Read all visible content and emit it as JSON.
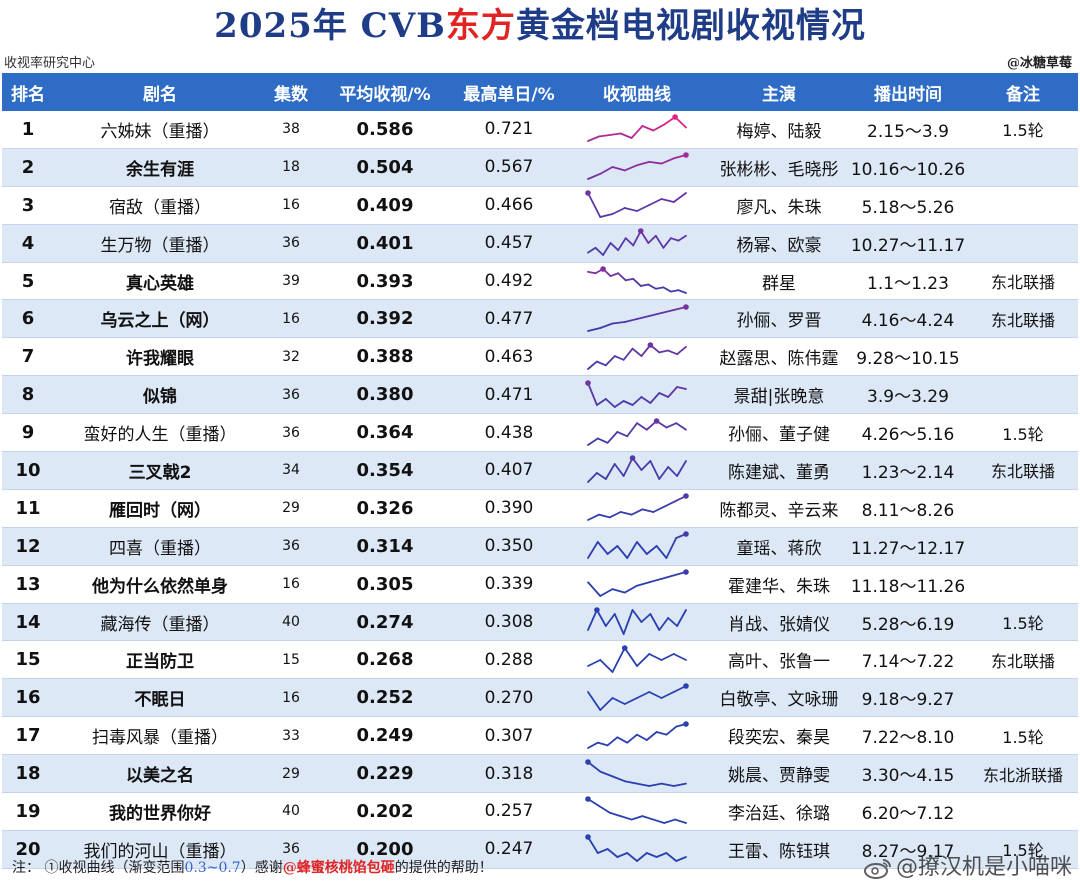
{
  "title": {
    "pre": "2025年 CVB",
    "highlight": "东方",
    "post": "黄金档电视剧收视情况"
  },
  "source_left": "收视率研究中心",
  "source_right": "@冰糖草莓",
  "columns": [
    "排名",
    "剧名",
    "集数",
    "平均收视/%",
    "最高单日/%",
    "收视曲线",
    "主演",
    "播出时间",
    "备注"
  ],
  "colors": {
    "header_bg": "#2e6cc6",
    "title": "#1f3d86",
    "accent_red": "#e02424",
    "stripe": "#dde8f6",
    "curve_high": "#e0208a",
    "curve_low": "#2a3fb0"
  },
  "rows": [
    {
      "rank": "1",
      "name": "六姊妹（重播）",
      "bold": false,
      "eps": "38",
      "avg": "0.586",
      "peak": "0.721",
      "cast": "梅婷、陆毅",
      "time": "2.15～3.9",
      "note": "1.5轮",
      "curve": [
        0.56,
        0.59,
        0.6,
        0.61,
        0.58,
        0.66,
        0.63,
        0.67,
        0.72,
        0.65
      ]
    },
    {
      "rank": "2",
      "name": "余生有涯",
      "bold": true,
      "eps": "18",
      "avg": "0.504",
      "peak": "0.567",
      "cast": "张彬彬、毛晓彤",
      "time": "10.16～10.26",
      "note": "",
      "curve": [
        0.43,
        0.46,
        0.5,
        0.48,
        0.51,
        0.53,
        0.52,
        0.55,
        0.57
      ]
    },
    {
      "rank": "3",
      "name": "宿敌（重播）",
      "bold": false,
      "eps": "16",
      "avg": "0.409",
      "peak": "0.466",
      "cast": "廖凡、朱珠",
      "time": "5.18～5.26",
      "note": "",
      "curve": [
        0.46,
        0.38,
        0.39,
        0.41,
        0.4,
        0.42,
        0.44,
        0.43,
        0.46
      ]
    },
    {
      "rank": "4",
      "name": "生万物（重播）",
      "bold": false,
      "eps": "36",
      "avg": "0.401",
      "peak": "0.457",
      "cast": "杨幂、欧豪",
      "time": "10.27～11.17",
      "note": "",
      "curve": [
        0.37,
        0.39,
        0.36,
        0.41,
        0.38,
        0.43,
        0.4,
        0.46,
        0.41,
        0.44,
        0.39,
        0.43,
        0.42,
        0.44
      ]
    },
    {
      "rank": "5",
      "name": "真心英雄",
      "bold": true,
      "eps": "39",
      "avg": "0.393",
      "peak": "0.492",
      "cast": "群星",
      "time": "1.1～1.23",
      "note": "东北联播",
      "curve": [
        0.47,
        0.46,
        0.49,
        0.44,
        0.46,
        0.41,
        0.42,
        0.37,
        0.38,
        0.35,
        0.36,
        0.33,
        0.34,
        0.32
      ]
    },
    {
      "rank": "6",
      "name": "乌云之上（网）",
      "bold": true,
      "eps": "16",
      "avg": "0.392",
      "peak": "0.477",
      "cast": "孙俪、罗晋",
      "time": "4.16～4.24",
      "note": "东北联播",
      "curve": [
        0.31,
        0.33,
        0.36,
        0.37,
        0.39,
        0.41,
        0.43,
        0.45,
        0.47
      ]
    },
    {
      "rank": "7",
      "name": "许我耀眼",
      "bold": true,
      "eps": "32",
      "avg": "0.388",
      "peak": "0.463",
      "cast": "赵露思、陈伟霆",
      "time": "9.28～10.15",
      "note": "",
      "curve": [
        0.33,
        0.37,
        0.35,
        0.4,
        0.38,
        0.44,
        0.4,
        0.46,
        0.42,
        0.43,
        0.41,
        0.45
      ]
    },
    {
      "rank": "8",
      "name": "似锦",
      "bold": true,
      "eps": "36",
      "avg": "0.380",
      "peak": "0.471",
      "cast": "景甜|张晚意",
      "time": "3.9～3.29",
      "note": "",
      "curve": [
        0.46,
        0.35,
        0.38,
        0.34,
        0.37,
        0.35,
        0.39,
        0.36,
        0.41,
        0.39,
        0.44,
        0.43
      ]
    },
    {
      "rank": "9",
      "name": "蛮好的人生（重播）",
      "bold": false,
      "eps": "36",
      "avg": "0.364",
      "peak": "0.438",
      "cast": "孙俪、董子健",
      "time": "4.26～5.16",
      "note": "1.5轮",
      "curve": [
        0.32,
        0.35,
        0.33,
        0.38,
        0.36,
        0.42,
        0.39,
        0.43,
        0.4,
        0.42,
        0.39
      ]
    },
    {
      "rank": "10",
      "name": "三叉戟2",
      "bold": true,
      "eps": "34",
      "avg": "0.354",
      "peak": "0.407",
      "cast": "陈建斌、董勇",
      "time": "1.23～2.14",
      "note": "东北联播",
      "curve": [
        0.32,
        0.35,
        0.33,
        0.38,
        0.34,
        0.4,
        0.36,
        0.39,
        0.33,
        0.37,
        0.34,
        0.39
      ]
    },
    {
      "rank": "11",
      "name": "雁回时（网）",
      "bold": true,
      "eps": "29",
      "avg": "0.326",
      "peak": "0.390",
      "cast": "陈都灵、辛云来",
      "time": "8.11～8.26",
      "note": "",
      "curve": [
        0.3,
        0.32,
        0.31,
        0.33,
        0.32,
        0.34,
        0.33,
        0.35,
        0.37,
        0.39
      ]
    },
    {
      "rank": "12",
      "name": "四喜（重播）",
      "bold": false,
      "eps": "36",
      "avg": "0.314",
      "peak": "0.350",
      "cast": "童瑶、蒋欣",
      "time": "11.27～12.17",
      "note": "",
      "curve": [
        0.29,
        0.33,
        0.3,
        0.32,
        0.29,
        0.33,
        0.3,
        0.32,
        0.29,
        0.34,
        0.35
      ]
    },
    {
      "rank": "13",
      "name": "他为什么依然单身",
      "bold": true,
      "eps": "16",
      "avg": "0.305",
      "peak": "0.339",
      "cast": "霍建华、朱珠",
      "time": "11.18～11.26",
      "note": "",
      "curve": [
        0.31,
        0.27,
        0.29,
        0.28,
        0.3,
        0.31,
        0.32,
        0.33,
        0.34
      ]
    },
    {
      "rank": "14",
      "name": "藏海传（重播）",
      "bold": false,
      "eps": "40",
      "avg": "0.274",
      "peak": "0.308",
      "cast": "肖战、张婧仪",
      "time": "5.28～6.19",
      "note": "1.5轮",
      "curve": [
        0.25,
        0.3,
        0.26,
        0.29,
        0.24,
        0.3,
        0.27,
        0.29,
        0.25,
        0.28,
        0.26,
        0.3
      ]
    },
    {
      "rank": "15",
      "name": "正当防卫",
      "bold": true,
      "eps": "15",
      "avg": "0.268",
      "peak": "0.288",
      "cast": "高叶、张鲁一",
      "time": "7.14～7.22",
      "note": "东北联播",
      "curve": [
        0.26,
        0.27,
        0.25,
        0.29,
        0.26,
        0.28,
        0.27,
        0.28,
        0.27
      ]
    },
    {
      "rank": "16",
      "name": "不眠日",
      "bold": true,
      "eps": "16",
      "avg": "0.252",
      "peak": "0.270",
      "cast": "白敬亭、文咏珊",
      "time": "9.18～9.27",
      "note": "",
      "curve": [
        0.26,
        0.23,
        0.25,
        0.24,
        0.25,
        0.26,
        0.25,
        0.26,
        0.27
      ]
    },
    {
      "rank": "17",
      "name": "扫毒风暴（重播）",
      "bold": false,
      "eps": "33",
      "avg": "0.249",
      "peak": "0.307",
      "cast": "段奕宏、秦昊",
      "time": "7.22～8.10",
      "note": "1.5轮",
      "curve": [
        0.22,
        0.24,
        0.23,
        0.26,
        0.24,
        0.27,
        0.25,
        0.28,
        0.27,
        0.3,
        0.31
      ]
    },
    {
      "rank": "18",
      "name": "以美之名",
      "bold": true,
      "eps": "29",
      "avg": "0.229",
      "peak": "0.318",
      "cast": "姚晨、贾静雯",
      "time": "3.30～4.15",
      "note": "东北浙联播",
      "curve": [
        0.31,
        0.27,
        0.25,
        0.23,
        0.22,
        0.21,
        0.22,
        0.21,
        0.22
      ]
    },
    {
      "rank": "19",
      "name": "我的世界你好",
      "bold": true,
      "eps": "40",
      "avg": "0.202",
      "peak": "0.257",
      "cast": "李治廷、徐璐",
      "time": "6.20～7.12",
      "note": "",
      "curve": [
        0.25,
        0.23,
        0.21,
        0.2,
        0.19,
        0.2,
        0.19,
        0.18,
        0.19,
        0.18
      ]
    },
    {
      "rank": "20",
      "name": "我们的河山（重播）",
      "bold": false,
      "eps": "36",
      "avg": "0.200",
      "peak": "0.247",
      "cast": "王雷、陈钰琪",
      "time": "8.27～9.17",
      "note": "1.5轮",
      "curve": [
        0.24,
        0.2,
        0.21,
        0.19,
        0.2,
        0.18,
        0.2,
        0.19,
        0.2,
        0.18,
        0.19
      ]
    }
  ],
  "footer": {
    "pre": "注：  ①收视曲线（渐变范围",
    "range": "0.3~0.7",
    "mid": "）感谢",
    "thanks": "@蜂蜜核桃馅包砸",
    "post": "的提供的帮助！"
  },
  "watermark": "@撩汉机是小喵咪",
  "icons": {
    "watermark": "weibo-icon"
  }
}
